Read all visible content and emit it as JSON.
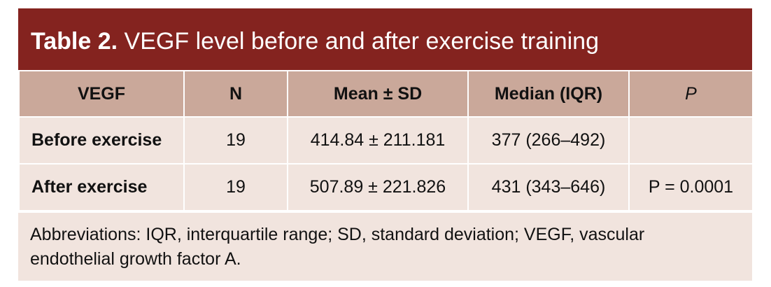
{
  "table": {
    "label": "Table 2.",
    "title": "VEGF level before and after exercise training",
    "header": [
      "VEGF",
      "N",
      "Mean ± SD",
      "Median (IQR)",
      "P"
    ],
    "rows": [
      [
        "Before exercise",
        "19",
        "414.84 ± 211.181",
        "377 (266–492)"
      ],
      [
        "After exercise",
        "19",
        "507.89 ± 221.826",
        "431 (343–646)",
        "P = 0.0001"
      ]
    ],
    "footnote": "Abbreviations: IQR, interquartile range; SD, standard deviation; VEGF, vascular endothelial growth factor A."
  }
}
